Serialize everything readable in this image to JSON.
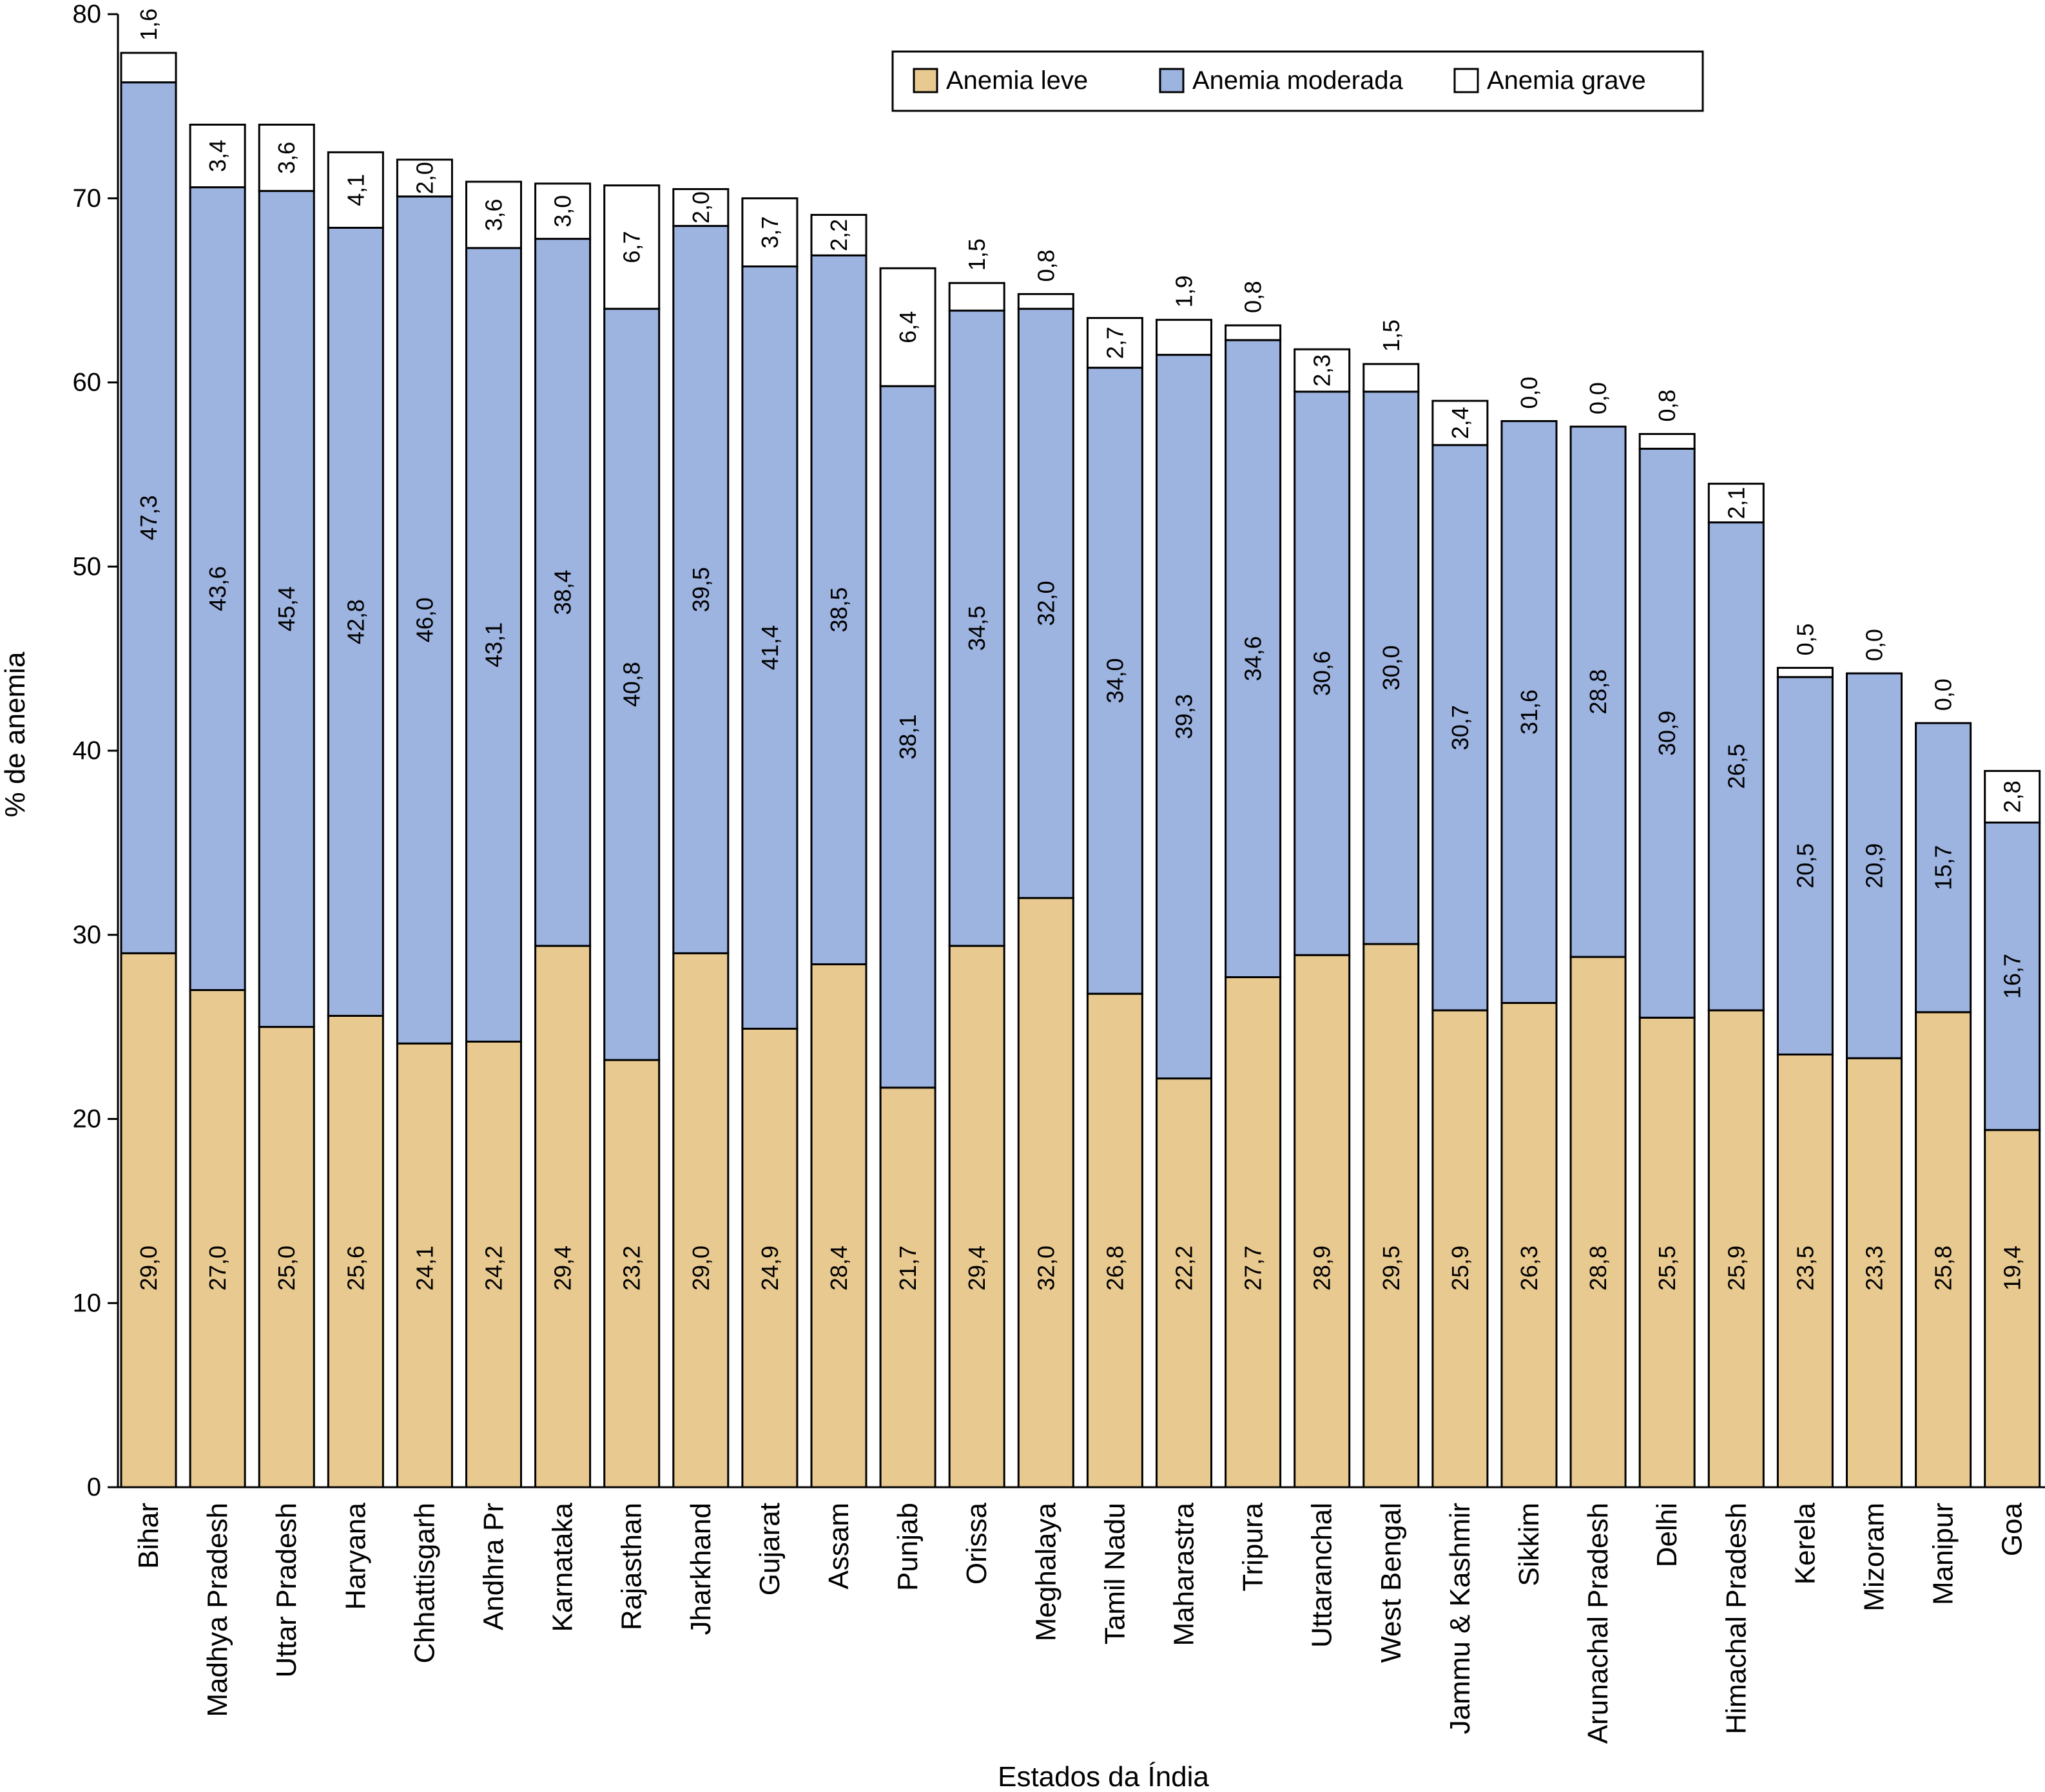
{
  "chart_data": {
    "type": "bar",
    "stacked": true,
    "title": "",
    "xlabel": "Estados da Índia",
    "ylabel": "% de anemia",
    "ylim": [
      0,
      80
    ],
    "yticks": [
      0,
      10,
      20,
      30,
      40,
      50,
      60,
      70,
      80
    ],
    "grid": false,
    "legend_position": "top-right",
    "categories": [
      "Bihar",
      "Madhya Pradesh",
      "Uttar Pradesh",
      "Haryana",
      "Chhattisgarh",
      "Andhra Pr",
      "Karnataka",
      "Rajasthan",
      "Jharkhand",
      "Gujarat",
      "Assam",
      "Punjab",
      "Orissa",
      "Meghalaya",
      "Tamil Nadu",
      "Maharastra",
      "Tripura",
      "Uttaranchal",
      "West Bengal",
      "Jammu & Kashmir",
      "Sikkim",
      "Arunachal Pradesh",
      "Delhi",
      "Himachal Pradesh",
      "Kerela",
      "Mizoram",
      "Manipur",
      "Goa"
    ],
    "series": [
      {
        "name": "Anemia leve",
        "color": "#e8c98f",
        "values": [
          29.0,
          27.0,
          25.0,
          25.6,
          24.1,
          24.2,
          29.4,
          23.2,
          29.0,
          24.9,
          28.4,
          21.7,
          29.4,
          32.0,
          26.8,
          22.2,
          27.7,
          28.9,
          29.5,
          25.9,
          26.3,
          28.8,
          25.5,
          25.9,
          23.5,
          23.3,
          25.8,
          19.4
        ],
        "labels": [
          "29,0",
          "27,0",
          "25,0",
          "25,6",
          "24,1",
          "24,2",
          "29,4",
          "23,2",
          "29,0",
          "24,9",
          "28,4",
          "21,7",
          "29,4",
          "32,0",
          "26,8",
          "22,2",
          "27,7",
          "28,9",
          "29,5",
          "25,9",
          "26,3",
          "28,8",
          "25,5",
          "25,9",
          "23,5",
          "23,3",
          "25,8",
          "19,4"
        ]
      },
      {
        "name": "Anemia moderada",
        "color": "#9db3e0",
        "values": [
          47.3,
          43.6,
          45.4,
          42.8,
          46.0,
          43.1,
          38.4,
          40.8,
          39.5,
          41.4,
          38.5,
          38.1,
          34.5,
          32.0,
          34.0,
          39.3,
          34.6,
          30.6,
          30.0,
          30.7,
          31.6,
          28.8,
          30.9,
          26.5,
          20.5,
          20.9,
          15.7,
          16.7
        ],
        "labels": [
          "47,3",
          "43,6",
          "45,4",
          "42,8",
          "46,0",
          "43,1",
          "38,4",
          "40,8",
          "39,5",
          "41,4",
          "38,5",
          "38,1",
          "34,5",
          "32,0",
          "34,0",
          "39,3",
          "34,6",
          "30,6",
          "30,0",
          "30,7",
          "31,6",
          "28,8",
          "30,9",
          "26,5",
          "20,5",
          "20,9",
          "15,7",
          "16,7"
        ]
      },
      {
        "name": "Anemia grave",
        "color": "#ffffff",
        "values": [
          1.6,
          3.4,
          3.6,
          4.1,
          2.0,
          3.6,
          3.0,
          6.7,
          2.0,
          3.7,
          2.2,
          6.4,
          1.5,
          0.8,
          2.7,
          1.9,
          0.8,
          2.3,
          1.5,
          2.4,
          0.0,
          0.0,
          0.8,
          2.1,
          0.5,
          0.0,
          0.0,
          2.8
        ],
        "labels": [
          "1,6",
          "3,4",
          "3,6",
          "4,1",
          "2,0",
          "3,6",
          "3,0",
          "6,7",
          "2,0",
          "3,7",
          "2,2",
          "6,4",
          "1,5",
          "0,8",
          "2,7",
          "1,9",
          "0,8",
          "2,3",
          "1,5",
          "2,4",
          "0,0",
          "0,0",
          "0,8",
          "2,1",
          "0,5",
          "0,0",
          "0,0",
          "2,8"
        ]
      }
    ]
  }
}
